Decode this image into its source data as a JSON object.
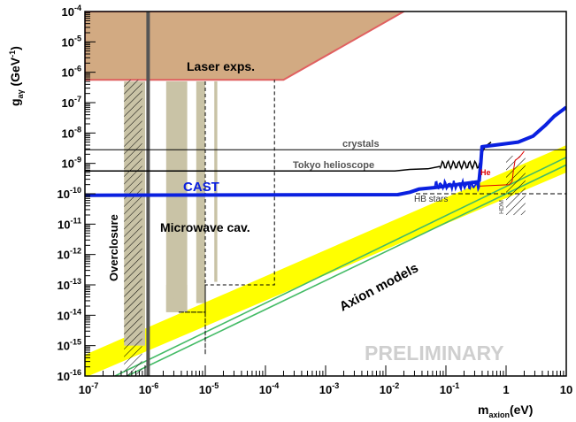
{
  "chart_data": {
    "type": "line",
    "title": "",
    "xlabel_main": "m",
    "xlabel_sub": "axion",
    "xlabel_unit": "(eV)",
    "ylabel_main": "g",
    "ylabel_sub": "aγ",
    "ylabel_unit_pre": " (GeV",
    "ylabel_unit_sup": "-1",
    "ylabel_unit_post": ")",
    "x_log10_range": [
      -7,
      1
    ],
    "y_log10_range": [
      -16,
      -4
    ],
    "x_ticks": [
      {
        "base": "10",
        "exp": "-7"
      },
      {
        "base": "10",
        "exp": "-6"
      },
      {
        "base": "10",
        "exp": "-5"
      },
      {
        "base": "10",
        "exp": "-4"
      },
      {
        "base": "10",
        "exp": "-3"
      },
      {
        "base": "10",
        "exp": "-2"
      },
      {
        "base": "10",
        "exp": "-1"
      },
      {
        "base": "1",
        "exp": ""
      },
      {
        "base": "10",
        "exp": ""
      }
    ],
    "y_ticks": [
      {
        "base": "10",
        "exp": "-4"
      },
      {
        "base": "10",
        "exp": "-5"
      },
      {
        "base": "10",
        "exp": "-6"
      },
      {
        "base": "10",
        "exp": "-7"
      },
      {
        "base": "10",
        "exp": "-8"
      },
      {
        "base": "10",
        "exp": "-9"
      },
      {
        "base": "10",
        "exp": "-10"
      },
      {
        "base": "10",
        "exp": "-11"
      },
      {
        "base": "10",
        "exp": "-12"
      },
      {
        "base": "10",
        "exp": "-13"
      },
      {
        "base": "10",
        "exp": "-14"
      },
      {
        "base": "10",
        "exp": "-15"
      },
      {
        "base": "10",
        "exp": "-16"
      }
    ],
    "regions": [
      {
        "name": "Laser exps.",
        "color": "#d2aa82",
        "edge": "#e06060",
        "log_m": [
          -7,
          -7,
          -1.7,
          -3.7,
          -7
        ],
        "log_g": [
          -4,
          -6.25,
          -4,
          -6.25,
          -6.25
        ]
      },
      {
        "name": "Axion models",
        "color": "#ffff00",
        "band_log_g_at_m1e-7": [
          -16.05,
          -15.3
        ],
        "band_log_g_at_m10": [
          -9.3,
          -8.4
        ]
      },
      {
        "name": "Microwave cav.",
        "color": "#c9c3a6",
        "strips_log_m": [
          [
            -6.35,
            -6.0
          ],
          [
            -5.65,
            -5.3
          ],
          [
            -5.15,
            -5.0
          ],
          [
            -4.85,
            -4.8
          ]
        ]
      }
    ],
    "lines": [
      {
        "name": "CAST",
        "color": "#0a20e0",
        "points_log": [
          [
            -7,
            -10.05
          ],
          [
            -1.75,
            -10.0
          ],
          [
            -1.2,
            -9.75
          ],
          [
            -0.5,
            -9.6
          ],
          [
            -0.45,
            -9.4
          ],
          [
            -0.45,
            -8.5
          ],
          [
            0.5,
            -8.3
          ],
          [
            1,
            -7.2
          ]
        ]
      },
      {
        "name": "Tokyo helioscope",
        "color": "#000000",
        "points_log": [
          [
            -7,
            -9.25
          ],
          [
            -1.8,
            -9.25
          ],
          [
            -1.2,
            -9.15
          ],
          [
            -0.9,
            -9.0
          ],
          [
            -0.6,
            -8.9
          ],
          [
            -0.4,
            -8.5
          ],
          [
            -0.3,
            -8.3
          ]
        ]
      },
      {
        "name": "crystals",
        "color": "#000000",
        "points_log": [
          [
            -7,
            -8.55
          ],
          [
            1,
            -8.55
          ]
        ]
      },
      {
        "name": "HB stars",
        "color": "#000000",
        "points_log": [
          [
            -7,
            -10
          ],
          [
            1,
            -10
          ]
        ]
      }
    ],
    "annotations": [
      "Overclosure",
      "He",
      "HDM",
      "PRELIMINARY"
    ]
  },
  "labels": {
    "laser": "Laser exps.",
    "microwave": "Microwave cav.",
    "overclosure": "Overclosure",
    "cast": "CAST",
    "tokyo": "Tokyo helioscope",
    "crystals": "crystals",
    "hb": "HB stars",
    "he": "He",
    "hdm": "HDM",
    "axion_models": "Axion models",
    "preliminary": "PRELIMINARY"
  },
  "colors": {
    "cast": "#0a20e0",
    "laser_fill": "#d2aa82",
    "laser_edge": "#e06060",
    "axion_band": "#ffff00",
    "axion_lines": "#44bb66",
    "microwave": "#c9c3a6",
    "he": "#e00000",
    "preliminary": "#cfcfcf"
  }
}
